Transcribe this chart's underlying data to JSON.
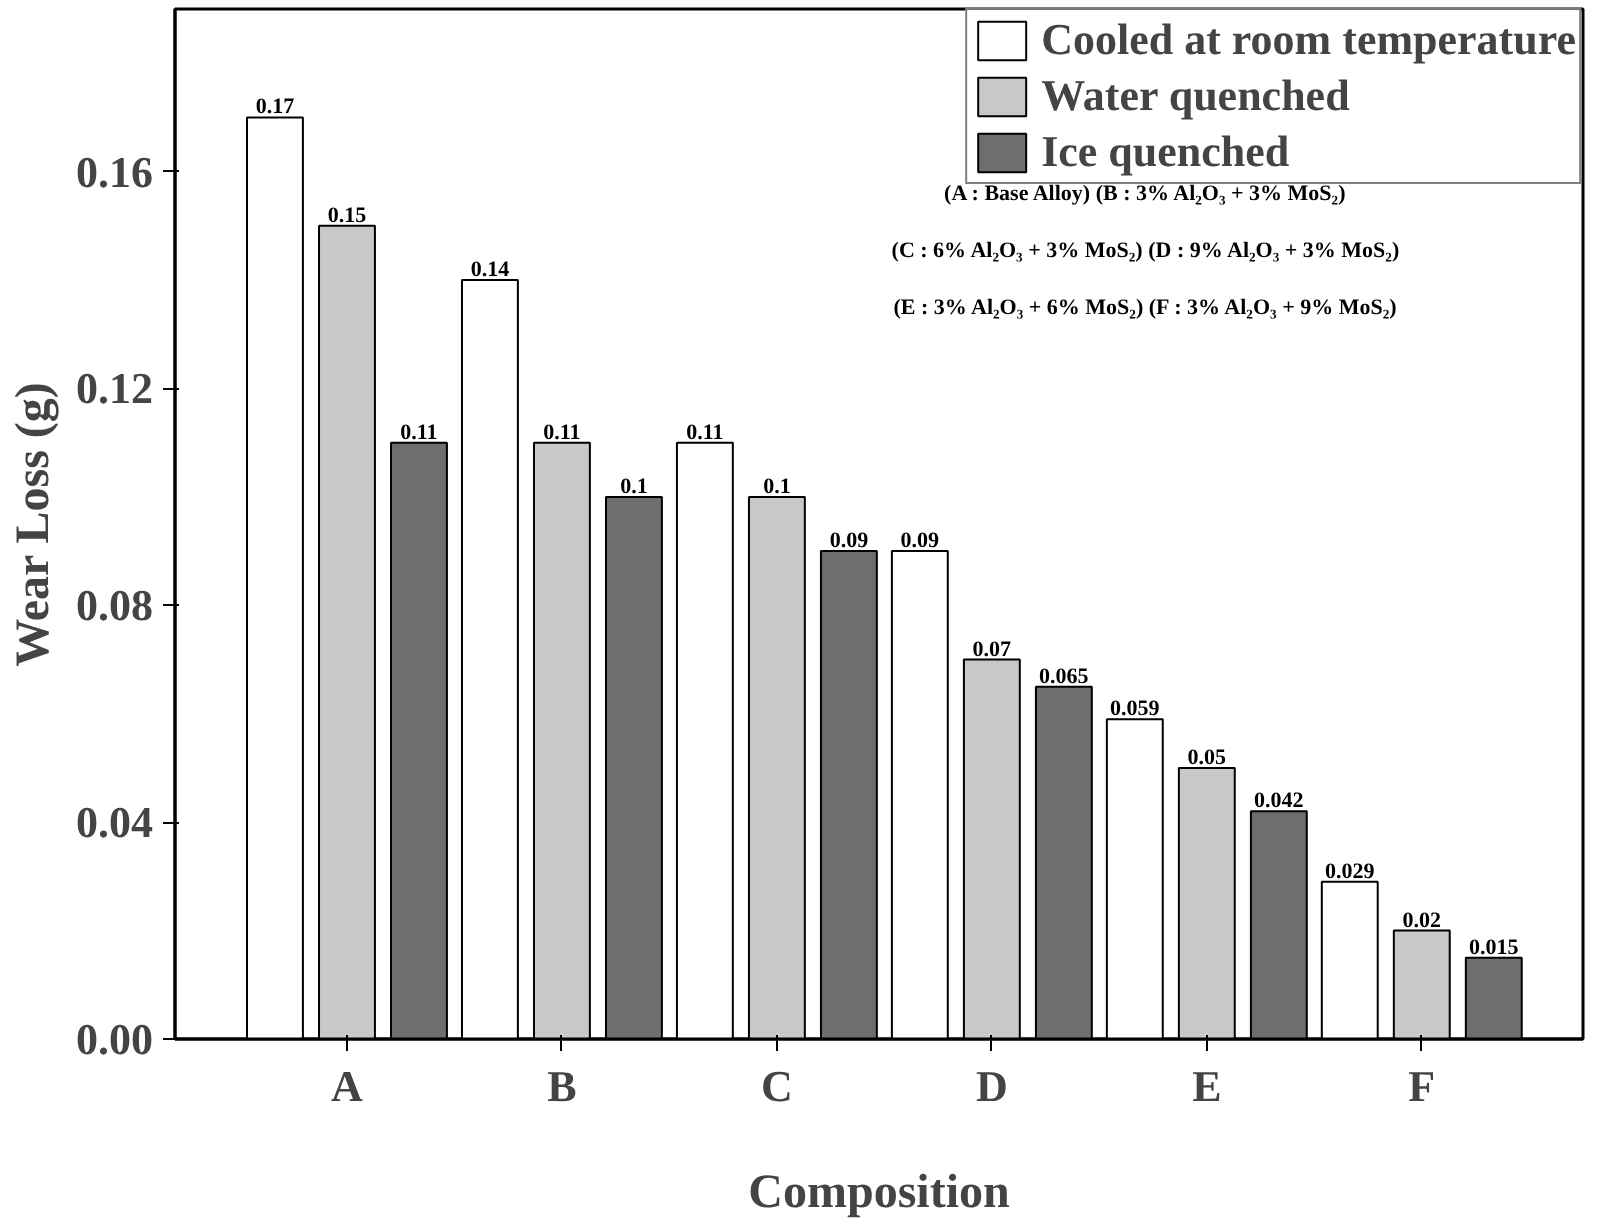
{
  "chart_data": {
    "type": "bar",
    "xlabel": "Composition",
    "ylabel": "Wear Loss (g)",
    "categories": [
      "A",
      "B",
      "C",
      "D",
      "E",
      "F"
    ],
    "series": [
      {
        "name": "Cooled at room temperature",
        "color": "#ffffff",
        "values": [
          0.17,
          0.14,
          0.11,
          0.09,
          0.059,
          0.029
        ]
      },
      {
        "name": "Water quenched",
        "color": "#c8c8c8",
        "values": [
          0.15,
          0.11,
          0.1,
          0.07,
          0.05,
          0.02
        ]
      },
      {
        "name": "Ice quenched",
        "color": "#6e6e6e",
        "values": [
          0.11,
          0.1,
          0.09,
          0.065,
          0.042,
          0.015
        ]
      }
    ],
    "ylim": [
      0,
      0.19
    ],
    "yticks": [
      {
        "value": 0,
        "label": "0.00"
      },
      {
        "value": 0.04,
        "label": "0.04"
      },
      {
        "value": 0.08,
        "label": "0.08"
      },
      {
        "value": 0.12,
        "label": "0.12"
      },
      {
        "value": 0.16,
        "label": "0.16"
      }
    ],
    "data_labels": true,
    "legend": "top right",
    "grid": false,
    "annotations": [
      "(A : Base Alloy) (B : 3% Al₂O₃ + 3% MoS₂)",
      "(C : 6% Al₂O₃ + 3% MoS₂) (D : 9% Al₂O₃ + 3% MoS₂)",
      "(E : 3% Al₂O₃ + 6% MoS₂) (F : 3% Al₂O₃ + 9% MoS₂)"
    ]
  }
}
